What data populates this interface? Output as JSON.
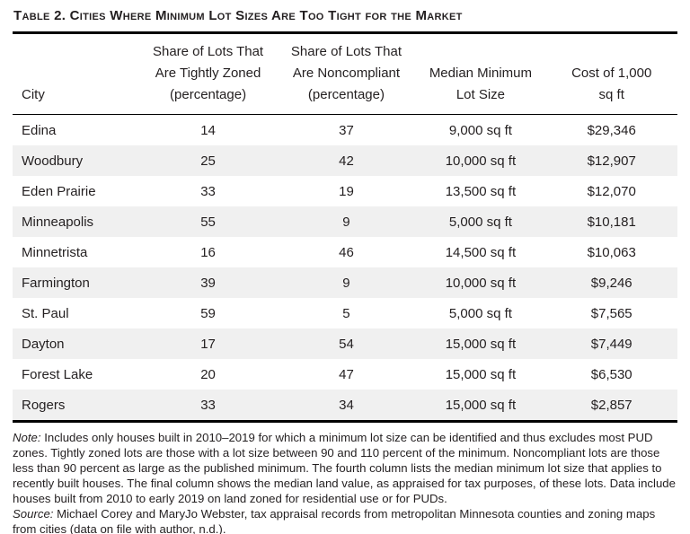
{
  "table": {
    "title": "Table 2. Cities Where Minimum Lot Sizes Are Too Tight for the Market",
    "headers": {
      "city": "City",
      "tightly_zoned": "Share of Lots That\nAre Tightly Zoned\n(percentage)",
      "noncompliant": "Share of Lots That\nAre Noncompliant\n(percentage)",
      "median_lot_size": "Median Minimum\nLot Size",
      "cost": "Cost of 1,000\nsq ft"
    },
    "rows": [
      {
        "city": "Edina",
        "tightly_zoned": "14",
        "noncompliant": "37",
        "median_lot_size": "9,000 sq ft",
        "cost": "$29,346"
      },
      {
        "city": "Woodbury",
        "tightly_zoned": "25",
        "noncompliant": "42",
        "median_lot_size": "10,000 sq ft",
        "cost": "$12,907"
      },
      {
        "city": "Eden Prairie",
        "tightly_zoned": "33",
        "noncompliant": "19",
        "median_lot_size": "13,500 sq ft",
        "cost": "$12,070"
      },
      {
        "city": "Minneapolis",
        "tightly_zoned": "55",
        "noncompliant": "9",
        "median_lot_size": "5,000 sq ft",
        "cost": "$10,181"
      },
      {
        "city": "Minnetrista",
        "tightly_zoned": "16",
        "noncompliant": "46",
        "median_lot_size": "14,500 sq ft",
        "cost": "$10,063"
      },
      {
        "city": "Farmington",
        "tightly_zoned": "39",
        "noncompliant": "9",
        "median_lot_size": "10,000 sq ft",
        "cost": "$9,246"
      },
      {
        "city": "St. Paul",
        "tightly_zoned": "59",
        "noncompliant": "5",
        "median_lot_size": "5,000 sq ft",
        "cost": "$7,565"
      },
      {
        "city": "Dayton",
        "tightly_zoned": "17",
        "noncompliant": "54",
        "median_lot_size": "15,000 sq ft",
        "cost": "$7,449"
      },
      {
        "city": "Forest Lake",
        "tightly_zoned": "20",
        "noncompliant": "47",
        "median_lot_size": "15,000 sq ft",
        "cost": "$6,530"
      },
      {
        "city": "Rogers",
        "tightly_zoned": "33",
        "noncompliant": "34",
        "median_lot_size": "15,000 sq ft",
        "cost": "$2,857"
      }
    ]
  },
  "notes": {
    "note_label": "Note:",
    "note_text": " Includes only houses built in 2010–2019 for which a minimum lot size can be identified and thus excludes most PUD zones. Tightly zoned lots are those with a lot size between 90 and 110 percent of the minimum. Noncompliant lots are those less than 90 percent as large as the published minimum. The fourth column lists the median minimum lot size that applies to recently built houses. The final column shows the median land value, as appraised for tax purposes, of these lots. Data include houses built from 2010 to early 2019 on land zoned for residential use or for PUDs.",
    "source_label": "Source:",
    "source_text": " Michael Corey and MaryJo Webster, tax appraisal records from metropolitan Minnesota counties and zoning maps from cities (data on file with author, n.d.)."
  },
  "colors": {
    "text": "#231f20",
    "row_stripe": "#f0f0f0",
    "rule": "#000000",
    "background": "#ffffff"
  }
}
